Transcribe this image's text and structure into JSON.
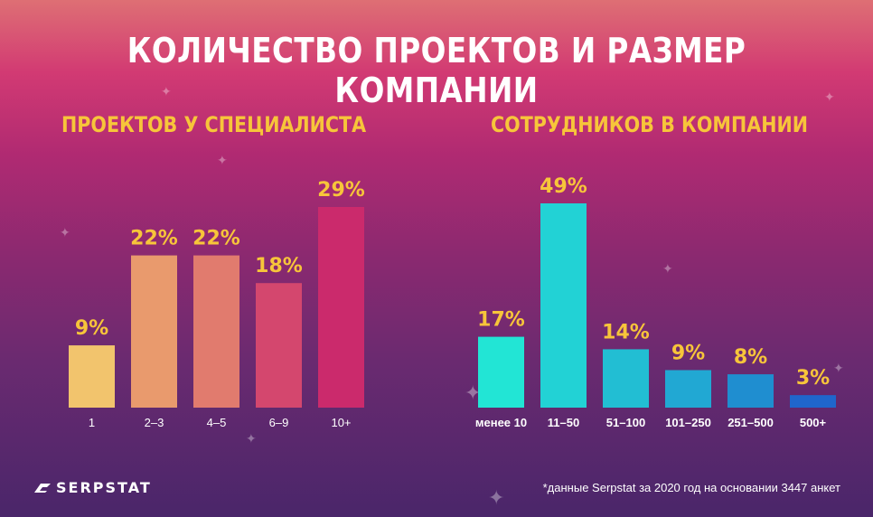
{
  "header": {
    "title": "КОЛИЧЕСТВО ПРОЕКТОВ И РАЗМЕР КОМПАНИИ"
  },
  "footer": {
    "logo_text": "SERPSTAT",
    "footnote": "*данные Serpstat за 2020 год на основании 3447 анкет"
  },
  "decorations": {
    "sparkle_icon": "four-point-star"
  },
  "chart_data": [
    {
      "type": "bar",
      "title": "ПРОЕКТОВ У СПЕЦИАЛИСТА",
      "categories": [
        "1",
        "2–3",
        "4–5",
        "6–9",
        "10+"
      ],
      "values": [
        9,
        22,
        22,
        18,
        29
      ],
      "value_labels": [
        "9%",
        "22%",
        "22%",
        "18%",
        "29%"
      ],
      "unit": "%",
      "ylim": [
        0,
        29
      ],
      "grid": false,
      "legend": "none",
      "colors": [
        "#f2c46d",
        "#e99a6d",
        "#e17b6e",
        "#d4476e",
        "#cb2a6c"
      ]
    },
    {
      "type": "bar",
      "title": "СОТРУДНИКОВ В  КОМПАНИИ",
      "categories": [
        "менее 10",
        "11–50",
        "51–100",
        "101–250",
        "251–500",
        "500+"
      ],
      "values": [
        17,
        49,
        14,
        9,
        8,
        3
      ],
      "value_labels": [
        "17%",
        "49%",
        "14%",
        "9%",
        "8%",
        "3%"
      ],
      "unit": "%",
      "ylim": [
        0,
        49
      ],
      "grid": false,
      "legend": "none",
      "colors": [
        "#22e5d5",
        "#22d2d5",
        "#22bed3",
        "#21a8d3",
        "#1f8ed0",
        "#1f66cc"
      ]
    }
  ]
}
